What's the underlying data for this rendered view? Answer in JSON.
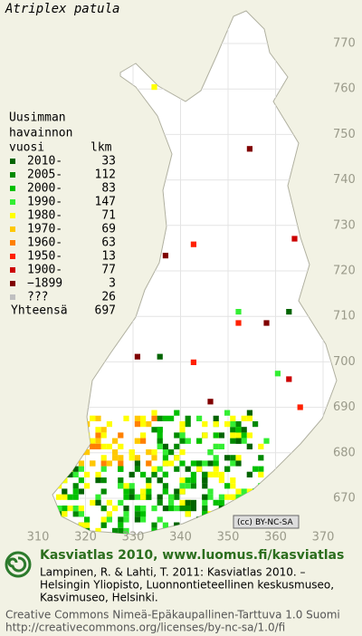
{
  "title": "Atriplex patula",
  "legend": {
    "heading": [
      "Uusimman",
      "havainnon"
    ],
    "year_header": "vuosi",
    "count_header": "lkm",
    "rows": [
      {
        "label": "2010-",
        "count": 33,
        "color": "#006400"
      },
      {
        "label": "2005-",
        "count": 112,
        "color": "#008a00"
      },
      {
        "label": "2000-",
        "count": 83,
        "color": "#00c000"
      },
      {
        "label": "1990-",
        "count": 147,
        "color": "#33ee33"
      },
      {
        "label": "1980-",
        "count": 71,
        "color": "#ffff00"
      },
      {
        "label": "1970-",
        "count": 69,
        "color": "#ffc800"
      },
      {
        "label": "1960-",
        "count": 63,
        "color": "#ff8000"
      },
      {
        "label": "1950-",
        "count": 13,
        "color": "#ff2000"
      },
      {
        "label": "1900-",
        "count": 77,
        "color": "#cc0000"
      },
      {
        "label": "−1899",
        "count": 3,
        "color": "#800000"
      },
      {
        "label": "???",
        "count": 26,
        "color": "#c0c0c0"
      }
    ],
    "total_label": "Yhteensä",
    "total": 697
  },
  "y_labels": [
    770,
    760,
    750,
    740,
    730,
    720,
    710,
    700,
    690,
    680,
    670
  ],
  "x_labels": [
    310,
    320,
    330,
    340,
    350,
    360,
    370
  ],
  "license_badge": [
    "(cc)",
    "BY-NC-SA"
  ],
  "footer": {
    "heading": "Kasviatlas 2010, www.luomus.fi/kasviatlas",
    "citation": [
      "Lampinen, R. & Lahti, T. 2011: Kasviatlas 2010. –",
      "Helsingin Yliopisto, Luonnontieteellinen keskusmuseo,",
      "Kasvimuseo, Helsinki."
    ],
    "license": [
      "Creative Commons Nimeä-Epäkaupallinen-Tarttuva 1.0 Suomi",
      "http://creativecommons.org/licenses/by-nc-sa/1.0/fi"
    ]
  }
}
